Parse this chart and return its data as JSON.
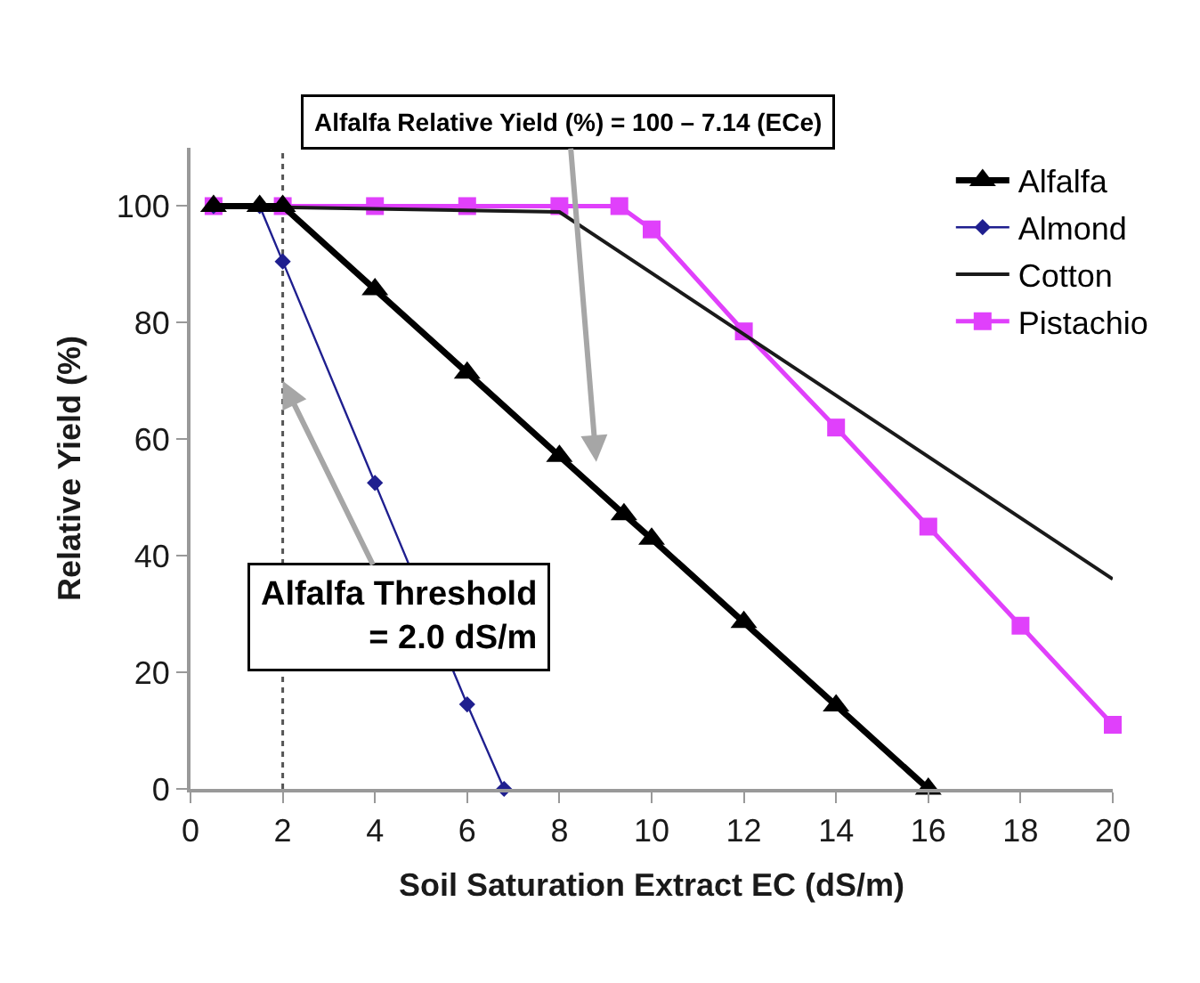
{
  "chart_data": {
    "type": "line",
    "xlabel": "Soil Saturation Extract EC (dS/m)",
    "ylabel": "Relative Yield (%)",
    "xlim": [
      0,
      20
    ],
    "xticks": [
      0,
      2,
      4,
      6,
      8,
      10,
      12,
      14,
      16,
      18,
      20
    ],
    "ylim": [
      0,
      110
    ],
    "yticks": [
      0,
      20,
      40,
      60,
      80,
      100
    ],
    "grid": false,
    "legend": "top right",
    "series": [
      {
        "name": "Alfalfa",
        "color": "#000000",
        "marker": "triangle",
        "x": [
          0.5,
          1.5,
          2,
          4,
          6,
          8,
          9.4,
          10,
          12,
          14,
          16
        ],
        "values": [
          100,
          100,
          100,
          85.7,
          71.4,
          57.1,
          47.1,
          42.9,
          28.6,
          14.3,
          0
        ]
      },
      {
        "name": "Almond",
        "color": "#1f1f8f",
        "marker": "diamond",
        "x": [
          0.5,
          1.5,
          2,
          4,
          6,
          6.8
        ],
        "values": [
          100,
          100,
          90.5,
          52.5,
          14.5,
          0
        ]
      },
      {
        "name": "Cotton",
        "color": "#1a1a1a",
        "marker": "none",
        "x": [
          0.5,
          8,
          20
        ],
        "values": [
          100,
          99,
          36
        ]
      },
      {
        "name": "Pistachio",
        "color": "#e040fb",
        "marker": "square",
        "x": [
          0.5,
          2,
          4,
          6,
          8,
          9.3,
          10,
          12,
          14,
          16,
          18,
          20
        ],
        "values": [
          100,
          100,
          100,
          100,
          100,
          100,
          96,
          78.5,
          62,
          45,
          28,
          11
        ]
      }
    ],
    "ref_lines": [
      {
        "axis": "x",
        "value": 2,
        "label": null,
        "color": "#555555",
        "line_style": "dotted"
      }
    ],
    "annotations": [
      "Alfalfa Relative Yield (%) = 100 – 7.14 (ECe)",
      {
        "text": "Alfalfa Threshold\n= 2.0 dS/m",
        "x": 2,
        "y": 70
      }
    ]
  }
}
